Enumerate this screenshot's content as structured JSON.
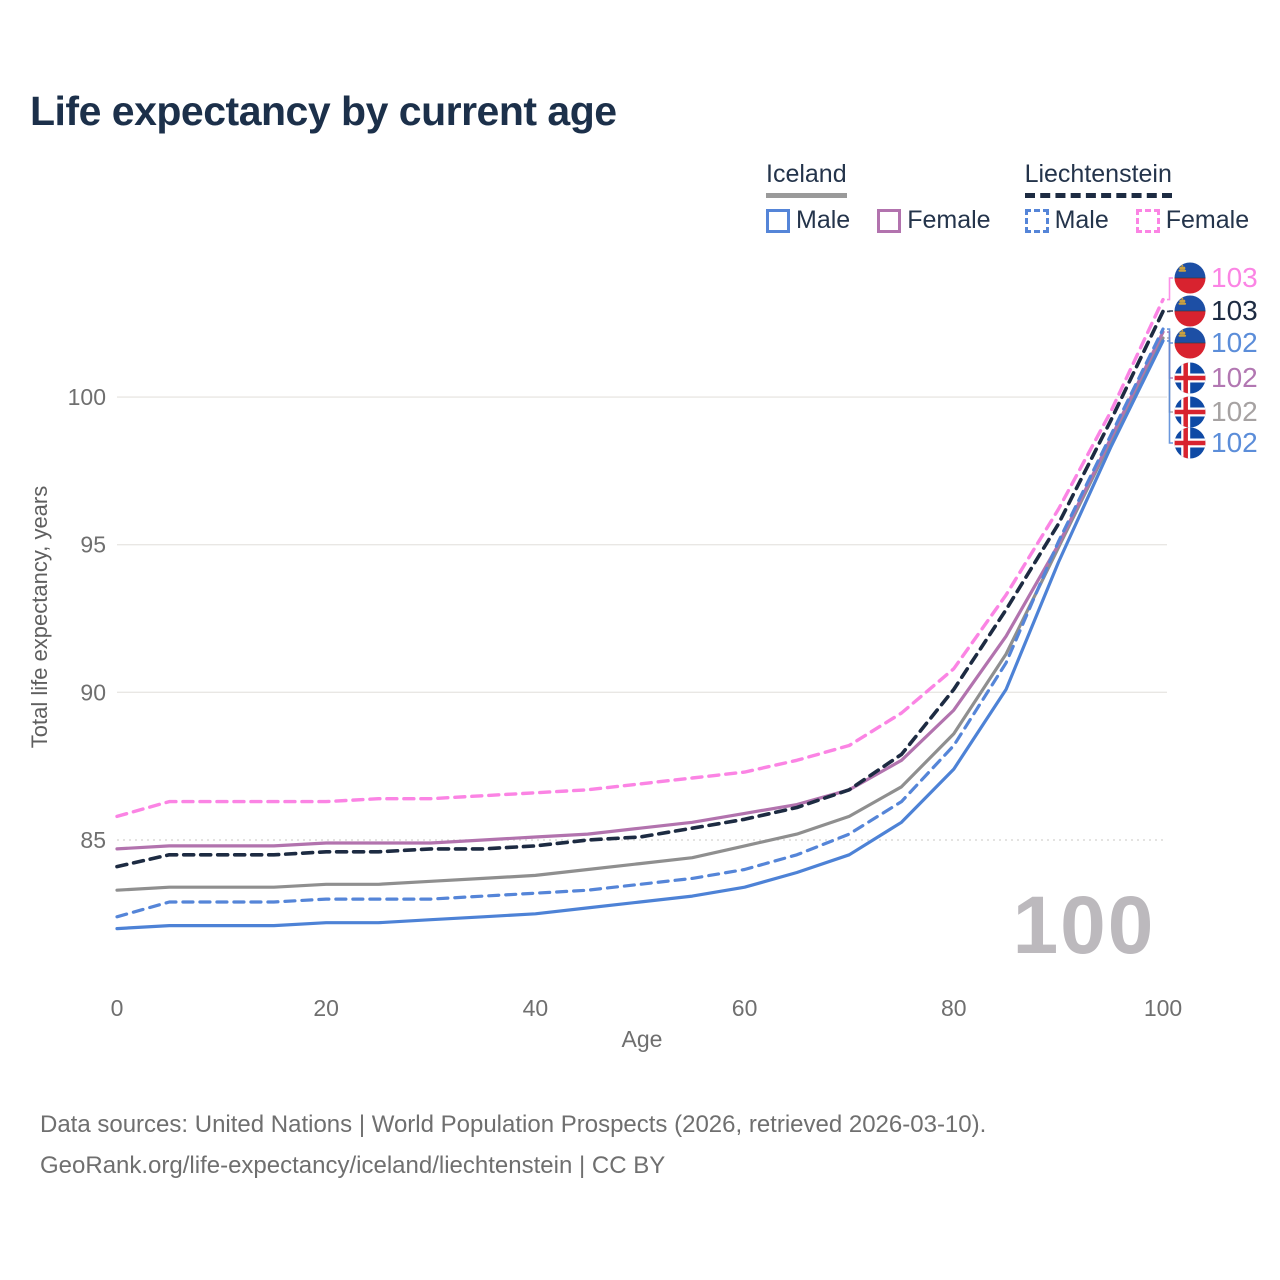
{
  "header": {
    "title": "Life expectancy by current age"
  },
  "legend": {
    "groups": [
      {
        "label": "Iceland",
        "line_style": "solid",
        "underline_color": "#9a9a9a",
        "items": [
          {
            "label": "Male",
            "color": "#5585d8",
            "swatch": "solid-blue"
          },
          {
            "label": "Female",
            "color": "#b273ae",
            "swatch": "solid-purple"
          }
        ]
      },
      {
        "label": "Liechtenstein",
        "line_style": "dashed",
        "underline_color": "#1d2b42",
        "items": [
          {
            "label": "Male",
            "color": "#5585d8",
            "swatch": "dash-blue"
          },
          {
            "label": "Female",
            "color": "#fb84e4",
            "swatch": "dash-pink"
          }
        ]
      }
    ]
  },
  "chart_data": {
    "type": "line",
    "title": "Life expectancy by current age",
    "xlabel": "Age",
    "ylabel": "Total life expectancy, years",
    "xlim": [
      0,
      100
    ],
    "ylim": [
      80.5,
      104
    ],
    "x_ticks": [
      0,
      20,
      40,
      60,
      80,
      100
    ],
    "y_ticks": [
      85,
      90,
      95,
      100
    ],
    "grid": "horizontal",
    "legend_position": "top-right",
    "watermark": "100",
    "x": [
      0,
      5,
      10,
      15,
      20,
      25,
      30,
      35,
      40,
      45,
      50,
      55,
      60,
      65,
      70,
      75,
      80,
      85,
      90,
      95,
      100
    ],
    "series": [
      {
        "name": "Iceland",
        "country": "Iceland",
        "group": "total",
        "color": "#8f8f8f",
        "dash": "solid",
        "width": 3.2,
        "values": [
          83.3,
          83.4,
          83.4,
          83.4,
          83.5,
          83.5,
          83.6,
          83.7,
          83.8,
          84.0,
          84.2,
          84.4,
          84.8,
          85.2,
          85.8,
          86.8,
          88.6,
          91.3,
          94.9,
          98.5,
          102.0
        ],
        "end_label": {
          "text": "102",
          "color": "#a6a2a2",
          "flag": "iceland",
          "row": 4
        }
      },
      {
        "name": "Iceland Female",
        "country": "Iceland",
        "group": "female",
        "color": "#b273ae",
        "dash": "solid",
        "width": 3.2,
        "values": [
          84.7,
          84.8,
          84.8,
          84.8,
          84.9,
          84.9,
          84.9,
          85.0,
          85.1,
          85.2,
          85.4,
          85.6,
          85.9,
          86.2,
          86.7,
          87.7,
          89.4,
          91.9,
          95.0,
          98.6,
          102.2
        ],
        "end_label": {
          "text": "102",
          "color": "#b277b2",
          "flag": "iceland",
          "row": 3
        }
      },
      {
        "name": "Liechtenstein",
        "country": "Liechtenstein",
        "group": "total",
        "color": "#1d2b42",
        "dash": "dashed",
        "width": 3.6,
        "values": [
          84.1,
          84.5,
          84.5,
          84.5,
          84.6,
          84.6,
          84.7,
          84.7,
          84.8,
          85.0,
          85.1,
          85.4,
          85.7,
          86.1,
          86.7,
          87.9,
          90.1,
          92.8,
          95.7,
          99.2,
          102.9
        ],
        "end_label": {
          "text": "103",
          "color": "#1d2b42",
          "flag": "liechtenstein",
          "row": 1
        }
      },
      {
        "name": "Liechtenstein Female",
        "country": "Liechtenstein",
        "group": "female",
        "color": "#fb84e4",
        "dash": "dashed",
        "width": 3.4,
        "values": [
          85.8,
          86.3,
          86.3,
          86.3,
          86.3,
          86.4,
          86.4,
          86.5,
          86.6,
          86.7,
          86.9,
          87.1,
          87.3,
          87.7,
          88.2,
          89.3,
          90.8,
          93.3,
          96.2,
          99.5,
          103.3
        ],
        "end_label": {
          "text": "103",
          "color": "#fb84e4",
          "flag": "liechtenstein",
          "row": 0
        }
      },
      {
        "name": "Liechtenstein Male",
        "country": "Liechtenstein",
        "group": "male",
        "color": "#5585d8",
        "dash": "dashed",
        "width": 3.2,
        "values": [
          82.4,
          82.9,
          82.9,
          82.9,
          83.0,
          83.0,
          83.0,
          83.1,
          83.2,
          83.3,
          83.5,
          83.7,
          84.0,
          84.5,
          85.2,
          86.3,
          88.2,
          91.0,
          95.1,
          98.7,
          102.3
        ],
        "end_label": {
          "text": "102",
          "color": "#5b8dd9",
          "flag": "liechtenstein",
          "row": 2
        }
      },
      {
        "name": "Iceland Male",
        "country": "Iceland",
        "group": "male",
        "color": "#4d82d6",
        "dash": "solid",
        "width": 3.2,
        "values": [
          82.0,
          82.1,
          82.1,
          82.1,
          82.2,
          82.2,
          82.3,
          82.4,
          82.5,
          82.7,
          82.9,
          83.1,
          83.4,
          83.9,
          84.5,
          85.6,
          87.4,
          90.1,
          94.4,
          98.3,
          101.9
        ],
        "end_label": {
          "text": "102",
          "color": "#5b8dd9",
          "flag": "iceland",
          "row": 5
        }
      }
    ],
    "flag_colors": {
      "liechtenstein_blue": "#1d4fa5",
      "liechtenstein_red": "#d8232f",
      "liechtenstein_crown": "#c9a040",
      "iceland_blue": "#0f4aa5",
      "iceland_white": "#ffffff",
      "iceland_red": "#d8232f"
    },
    "axis_color": "#6f6f6f",
    "grid_color": "#e9e7e4",
    "watermark_color": "#bcb9bd"
  },
  "footer": {
    "line1": "Data sources: United Nations | World Population Prospects (2026, retrieved 2026-03-10).",
    "line2": "GeoRank.org/life-expectancy/iceland/liechtenstein | CC BY"
  }
}
